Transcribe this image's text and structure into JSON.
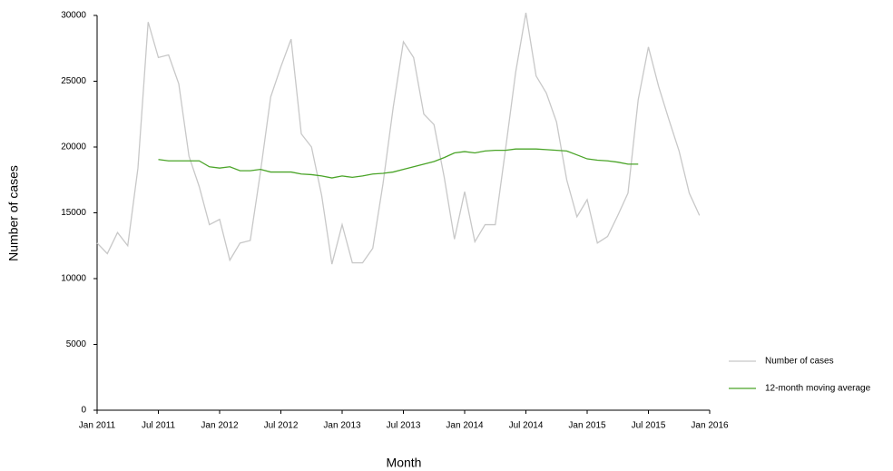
{
  "chart_data": {
    "type": "line",
    "x_label": "Month",
    "y_label": "Number of cases",
    "x": [
      "2011-01",
      "2011-02",
      "2011-03",
      "2011-04",
      "2011-05",
      "2011-06",
      "2011-07",
      "2011-08",
      "2011-09",
      "2011-10",
      "2011-11",
      "2011-12",
      "2012-01",
      "2012-02",
      "2012-03",
      "2012-04",
      "2012-05",
      "2012-06",
      "2012-07",
      "2012-08",
      "2012-09",
      "2012-10",
      "2012-11",
      "2012-12",
      "2013-01",
      "2013-02",
      "2013-03",
      "2013-04",
      "2013-05",
      "2013-06",
      "2013-07",
      "2013-08",
      "2013-09",
      "2013-10",
      "2013-11",
      "2013-12",
      "2014-01",
      "2014-02",
      "2014-03",
      "2014-04",
      "2014-05",
      "2014-06",
      "2014-07",
      "2014-08",
      "2014-09",
      "2014-10",
      "2014-11",
      "2014-12",
      "2015-01",
      "2015-02",
      "2015-03",
      "2015-04",
      "2015-05",
      "2015-06",
      "2015-07",
      "2015-08",
      "2015-09",
      "2015-10",
      "2015-11",
      "2015-12"
    ],
    "series": [
      {
        "name": "Number of cases",
        "color": "#c8c8c8",
        "values": [
          12700,
          11900,
          13500,
          12500,
          18400,
          29500,
          26800,
          27000,
          24800,
          19300,
          17000,
          14100,
          14500,
          11400,
          12700,
          12900,
          18100,
          23800,
          26100,
          28200,
          21000,
          20000,
          16300,
          11100,
          14100,
          11200,
          11200,
          12300,
          17200,
          23000,
          28000,
          26800,
          22500,
          21700,
          17700,
          13000,
          16600,
          12800,
          14100,
          14100,
          19800,
          25700,
          30200,
          25400,
          24100,
          21900,
          17500,
          14700,
          16000,
          12700,
          13200,
          14800,
          16500,
          23600,
          27600,
          24600,
          22100,
          19700,
          16500,
          14800
        ]
      },
      {
        "name": "12-month moving average",
        "color": "#4aa428",
        "values": [
          null,
          null,
          null,
          null,
          null,
          null,
          19050,
          18950,
          18950,
          18950,
          18950,
          18500,
          18400,
          18500,
          18200,
          18200,
          18300,
          18100,
          18100,
          18100,
          17950,
          17900,
          17800,
          17650,
          17800,
          17700,
          17800,
          17950,
          18000,
          18100,
          18300,
          18500,
          18700,
          18900,
          19200,
          19550,
          19650,
          19550,
          19700,
          19750,
          19750,
          19850,
          19850,
          19850,
          19800,
          19750,
          19700,
          19400,
          19100,
          19000,
          18950,
          18850,
          18700,
          18700,
          null,
          null,
          null,
          null,
          null,
          null
        ]
      }
    ],
    "xlim": [
      "2011-01",
      "2016-01"
    ],
    "xticks": [
      {
        "value": "2011-01",
        "label": "Jan 2011"
      },
      {
        "value": "2011-07",
        "label": "Jul 2011"
      },
      {
        "value": "2012-01",
        "label": "Jan 2012"
      },
      {
        "value": "2012-07",
        "label": "Jul 2012"
      },
      {
        "value": "2013-01",
        "label": "Jan 2013"
      },
      {
        "value": "2013-07",
        "label": "Jul 2013"
      },
      {
        "value": "2014-01",
        "label": "Jan 2014"
      },
      {
        "value": "2014-07",
        "label": "Jul 2014"
      },
      {
        "value": "2015-01",
        "label": "Jan 2015"
      },
      {
        "value": "2015-07",
        "label": "Jul 2015"
      },
      {
        "value": "2016-01",
        "label": "Jan 2016"
      }
    ],
    "ylim": [
      0,
      30000
    ],
    "yticks": [
      0,
      5000,
      10000,
      15000,
      20000,
      25000,
      30000
    ],
    "grid": false,
    "legend": "bottom-right"
  }
}
